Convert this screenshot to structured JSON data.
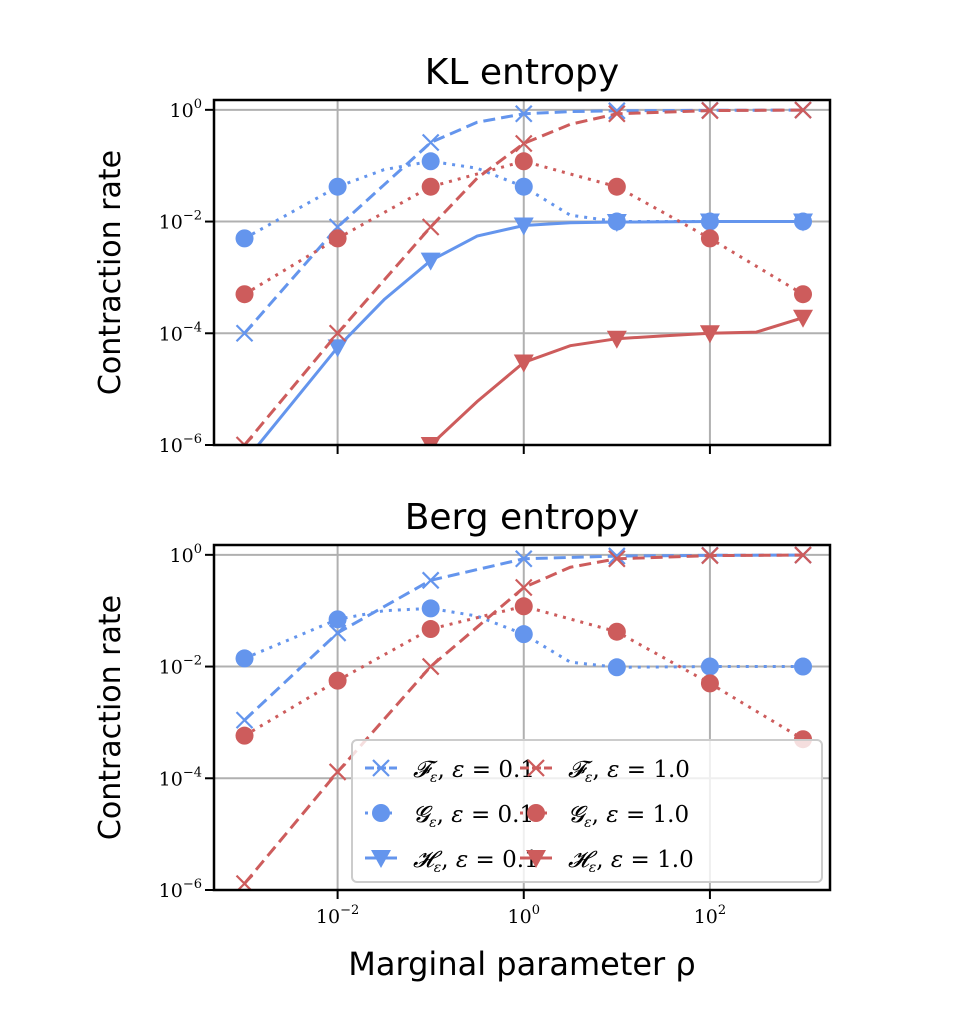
{
  "chart_data": [
    {
      "type": "line",
      "title": "KL entropy",
      "ylabel": "Contraction rate",
      "xlabel": "",
      "xscale": "log",
      "yscale": "log",
      "xlim": [
        0.00047,
        1950
      ],
      "ylim": [
        1e-06,
        1.5
      ],
      "grid": true,
      "series": [
        {
          "name": "F_ε, ε = 0.1",
          "color": "#6495ED",
          "dash": "dashed",
          "marker": "x",
          "x": [
            0.001,
            0.01,
            0.1,
            0.316,
            1,
            3.16,
            10,
            100,
            1000
          ],
          "y": [
            0.0001,
            0.008,
            0.26,
            0.6,
            0.85,
            0.93,
            0.96,
            0.98,
            0.99
          ]
        },
        {
          "name": "G_ε, ε = 0.1",
          "color": "#6495ED",
          "dash": "dotted",
          "marker": "o",
          "x": [
            0.001,
            0.01,
            0.0316,
            0.1,
            0.316,
            1,
            3.16,
            10,
            100,
            1000
          ],
          "y": [
            0.005,
            0.042,
            0.085,
            0.12,
            0.09,
            0.042,
            0.013,
            0.01,
            0.01,
            0.01
          ]
        },
        {
          "name": "H_ε, ε = 0.1",
          "color": "#6495ED",
          "dash": "solid",
          "marker": "v",
          "x": [
            0.001,
            0.01,
            0.0316,
            0.1,
            0.316,
            1,
            3.16,
            10,
            100,
            1000
          ],
          "y": [
            5e-07,
            5.6e-05,
            0.0004,
            0.002,
            0.0055,
            0.0085,
            0.0095,
            0.0098,
            0.01,
            0.01
          ]
        },
        {
          "name": "F_ε, ε = 1.0",
          "color": "#CD5C5C",
          "dash": "dashed",
          "marker": "x",
          "x": [
            0.001,
            0.01,
            0.1,
            0.316,
            1,
            3.16,
            10,
            100,
            1000
          ],
          "y": [
            1e-06,
            0.0001,
            0.008,
            0.06,
            0.25,
            0.55,
            0.85,
            0.97,
            0.99
          ]
        },
        {
          "name": "G_ε, ε = 1.0",
          "color": "#CD5C5C",
          "dash": "dotted",
          "marker": "o",
          "x": [
            0.001,
            0.01,
            0.1,
            1,
            10,
            100,
            1000
          ],
          "y": [
            0.0005,
            0.005,
            0.042,
            0.12,
            0.042,
            0.005,
            0.0005
          ]
        },
        {
          "name": "H_ε, ε = 1.0",
          "color": "#CD5C5C",
          "dash": "solid",
          "marker": "v",
          "x": [
            0.1,
            0.316,
            1,
            3.16,
            10,
            31.6,
            100,
            316,
            1000
          ],
          "y": [
            1e-06,
            6e-06,
            3e-05,
            6e-05,
            8e-05,
            9e-05,
            0.0001,
            0.000105,
            0.00019
          ]
        }
      ]
    },
    {
      "type": "line",
      "title": "Berg entropy",
      "ylabel": "Contraction rate",
      "xlabel": "Marginal parameter ρ",
      "xscale": "log",
      "yscale": "log",
      "xlim": [
        0.00047,
        1950
      ],
      "ylim": [
        1e-06,
        1.5
      ],
      "grid": true,
      "legend": "lower-right",
      "series": [
        {
          "name": "F_ε, ε = 0.1",
          "color": "#6495ED",
          "dash": "dashed",
          "marker": "x",
          "x": [
            0.001,
            0.01,
            0.1,
            1,
            10,
            100,
            1000
          ],
          "y": [
            0.0011,
            0.04,
            0.35,
            0.85,
            0.95,
            0.98,
            0.99
          ]
        },
        {
          "name": "G_ε, ε = 0.1",
          "color": "#6495ED",
          "dash": "dotted",
          "marker": "o",
          "x": [
            0.001,
            0.01,
            0.0316,
            0.1,
            0.316,
            1,
            3.16,
            10,
            100,
            1000
          ],
          "y": [
            0.014,
            0.07,
            0.1,
            0.11,
            0.08,
            0.038,
            0.012,
            0.0097,
            0.01,
            0.01
          ]
        },
        {
          "name": "H_ε, ε = 0.1",
          "color": "#6495ED",
          "dash": "solid",
          "marker": "v",
          "x": [],
          "y": []
        },
        {
          "name": "F_ε, ε = 1.0",
          "color": "#CD5C5C",
          "dash": "dashed",
          "marker": "x",
          "x": [
            0.001,
            0.01,
            0.1,
            1,
            3.16,
            10,
            100,
            1000
          ],
          "y": [
            1.3e-06,
            0.00013,
            0.01,
            0.26,
            0.6,
            0.85,
            0.97,
            0.99
          ]
        },
        {
          "name": "G_ε, ε = 1.0",
          "color": "#CD5C5C",
          "dash": "dotted",
          "marker": "o",
          "x": [
            0.001,
            0.01,
            0.1,
            1,
            10,
            100,
            1000
          ],
          "y": [
            0.00058,
            0.0056,
            0.047,
            0.12,
            0.042,
            0.005,
            0.0005
          ]
        },
        {
          "name": "H_ε, ε = 1.0",
          "color": "#CD5C5C",
          "dash": "solid",
          "marker": "v",
          "x": [],
          "y": []
        }
      ]
    }
  ],
  "labels": {
    "title_top": "KL entropy",
    "title_bottom": "Berg entropy",
    "ylabel": "Contraction rate",
    "xlabel": "Marginal parameter ρ",
    "yticks": [
      "10^0",
      "10^-2",
      "10^-4",
      "10^-6"
    ],
    "xticks": [
      "10^-2",
      "10^0",
      "10^2"
    ],
    "legend": [
      {
        "sym": "F",
        "eps": "0.1"
      },
      {
        "sym": "F",
        "eps": "1.0"
      },
      {
        "sym": "G",
        "eps": "0.1"
      },
      {
        "sym": "G",
        "eps": "1.0"
      },
      {
        "sym": "H",
        "eps": "0.1"
      },
      {
        "sym": "H",
        "eps": "1.0"
      }
    ]
  }
}
